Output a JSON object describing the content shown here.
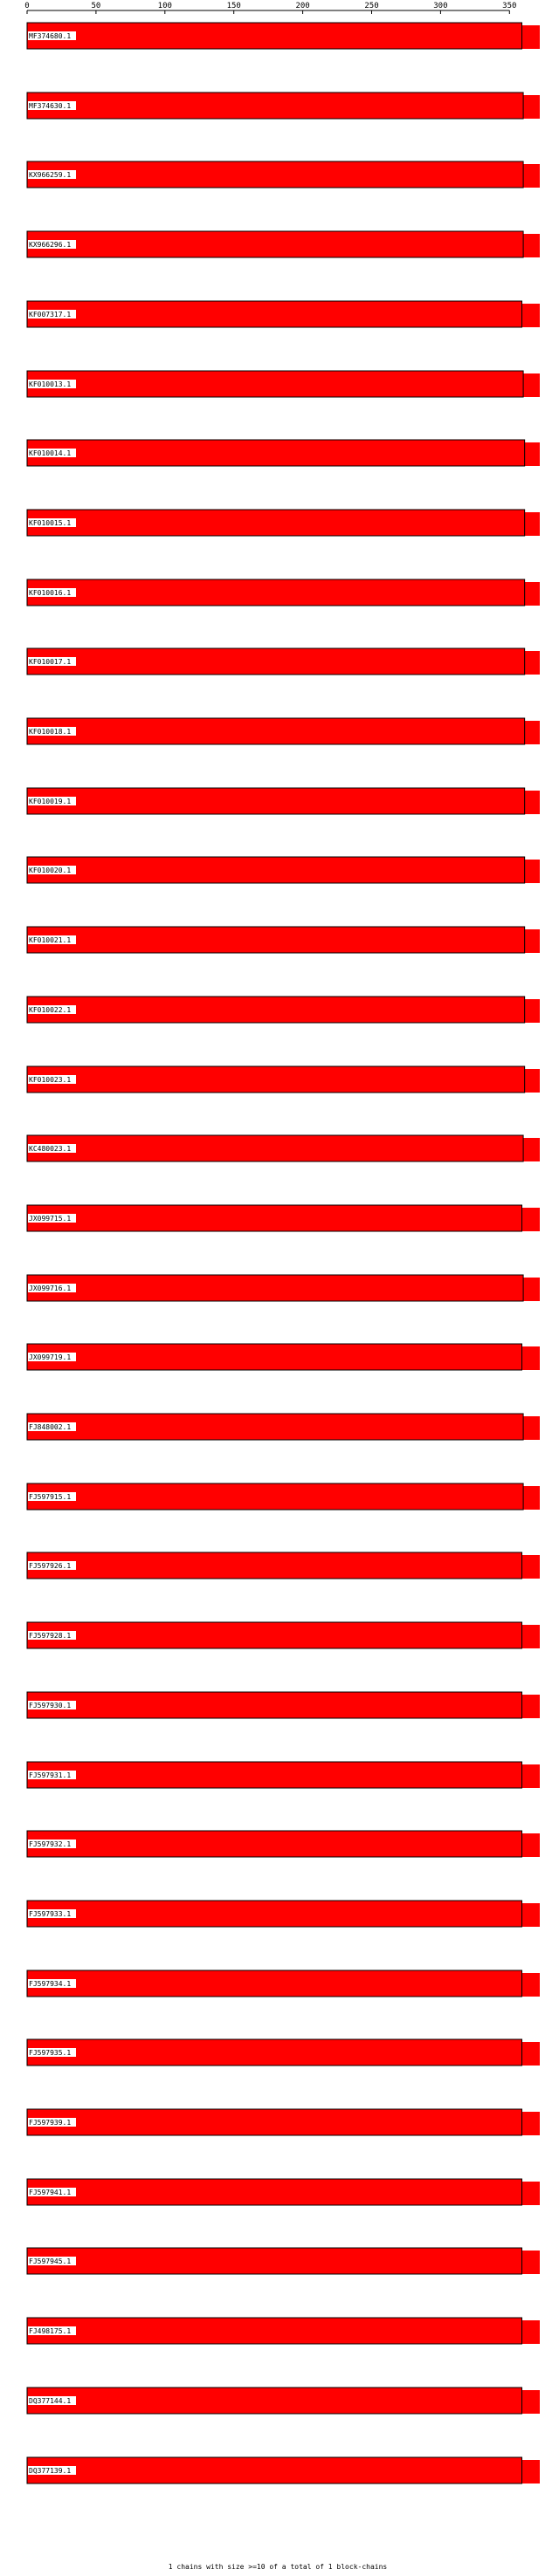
{
  "chart_data": {
    "type": "bar",
    "orientation": "horizontal",
    "x_ticks": [
      0,
      50,
      100,
      150,
      200,
      250,
      300,
      350
    ],
    "xlim": [
      0,
      385
    ],
    "rows": [
      {
        "label": "MF374680.1",
        "value": 359
      },
      {
        "label": "MF374630.1",
        "value": 360
      },
      {
        "label": "KX966259.1",
        "value": 360
      },
      {
        "label": "KX966296.1",
        "value": 360
      },
      {
        "label": "KF007317.1",
        "value": 359
      },
      {
        "label": "KF010013.1",
        "value": 360
      },
      {
        "label": "KF010014.1",
        "value": 361
      },
      {
        "label": "KF010015.1",
        "value": 361
      },
      {
        "label": "KF010016.1",
        "value": 361
      },
      {
        "label": "KF010017.1",
        "value": 361
      },
      {
        "label": "KF010018.1",
        "value": 361
      },
      {
        "label": "KF010019.1",
        "value": 361
      },
      {
        "label": "KF010020.1",
        "value": 361
      },
      {
        "label": "KF010021.1",
        "value": 361
      },
      {
        "label": "KF010022.1",
        "value": 361
      },
      {
        "label": "KF010023.1",
        "value": 361
      },
      {
        "label": "KC480023.1",
        "value": 360
      },
      {
        "label": "JX099715.1",
        "value": 359
      },
      {
        "label": "JX099716.1",
        "value": 360
      },
      {
        "label": "JX099719.1",
        "value": 359
      },
      {
        "label": "FJ848002.1",
        "value": 360
      },
      {
        "label": "FJ597915.1",
        "value": 360
      },
      {
        "label": "FJ597926.1",
        "value": 359
      },
      {
        "label": "FJ597928.1",
        "value": 359
      },
      {
        "label": "FJ597930.1",
        "value": 359
      },
      {
        "label": "FJ597931.1",
        "value": 359
      },
      {
        "label": "FJ597932.1",
        "value": 359
      },
      {
        "label": "FJ597933.1",
        "value": 359
      },
      {
        "label": "FJ597934.1",
        "value": 359
      },
      {
        "label": "FJ597935.1",
        "value": 359
      },
      {
        "label": "FJ597939.1",
        "value": 359
      },
      {
        "label": "FJ597941.1",
        "value": 359
      },
      {
        "label": "FJ597945.1",
        "value": 359
      },
      {
        "label": "FJ498175.1",
        "value": 359
      },
      {
        "label": "DQ377144.1",
        "value": 359
      },
      {
        "label": "DQ377139.1",
        "value": 359
      }
    ],
    "bar_color": "#ff0000",
    "extension_color": "#ff0000"
  },
  "footer": "1 chains with size >=10 of a total of 1 block-chains"
}
